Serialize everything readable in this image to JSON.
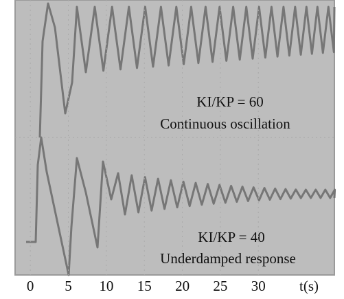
{
  "chart_data": {
    "type": "oscilloscope",
    "xlim": [
      -2,
      40
    ],
    "xticks": [
      0,
      5,
      10,
      15,
      20,
      25,
      30
    ],
    "xlabel": "t(s)",
    "annotations": [
      {
        "label": "KI/KP = 60",
        "caption": "Continuous oscillation"
      },
      {
        "label": "KI/KP = 40",
        "caption": "Underdamped response"
      }
    ]
  }
}
